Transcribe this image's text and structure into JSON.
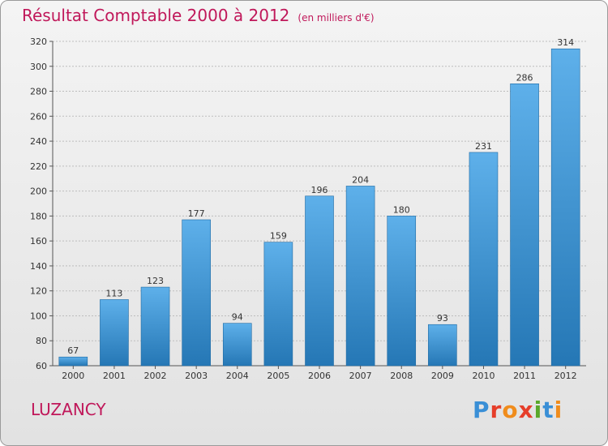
{
  "header": {
    "title": "Résultat Comptable 2000 à 2012",
    "subtitle": "(en milliers d'€)"
  },
  "footer": {
    "commune": "LUZANCY",
    "logo_text": "Proxiti",
    "logo_colors": [
      "#3a8fd6",
      "#e63e2a",
      "#f08c1c",
      "#e63e2a",
      "#5aa82a",
      "#3a8fd6",
      "#f08c1c"
    ]
  },
  "colors": {
    "title": "#c0185a",
    "bar_light": "#5eb0ea",
    "bar_dark": "#2577b5",
    "grid": "#bdbdbd"
  },
  "chart_data": {
    "type": "bar",
    "title": "Résultat Comptable 2000 à 2012",
    "subtitle": "(en milliers d'€)",
    "categories": [
      "2000",
      "2001",
      "2002",
      "2003",
      "2004",
      "2005",
      "2006",
      "2007",
      "2008",
      "2009",
      "2010",
      "2011",
      "2012"
    ],
    "values": [
      67,
      113,
      123,
      177,
      94,
      159,
      196,
      204,
      180,
      93,
      231,
      286,
      314
    ],
    "ylim": [
      60,
      320
    ],
    "yticks": [
      60,
      80,
      100,
      120,
      140,
      160,
      180,
      200,
      220,
      240,
      260,
      280,
      300,
      320
    ],
    "grid": true,
    "legend": "none"
  }
}
